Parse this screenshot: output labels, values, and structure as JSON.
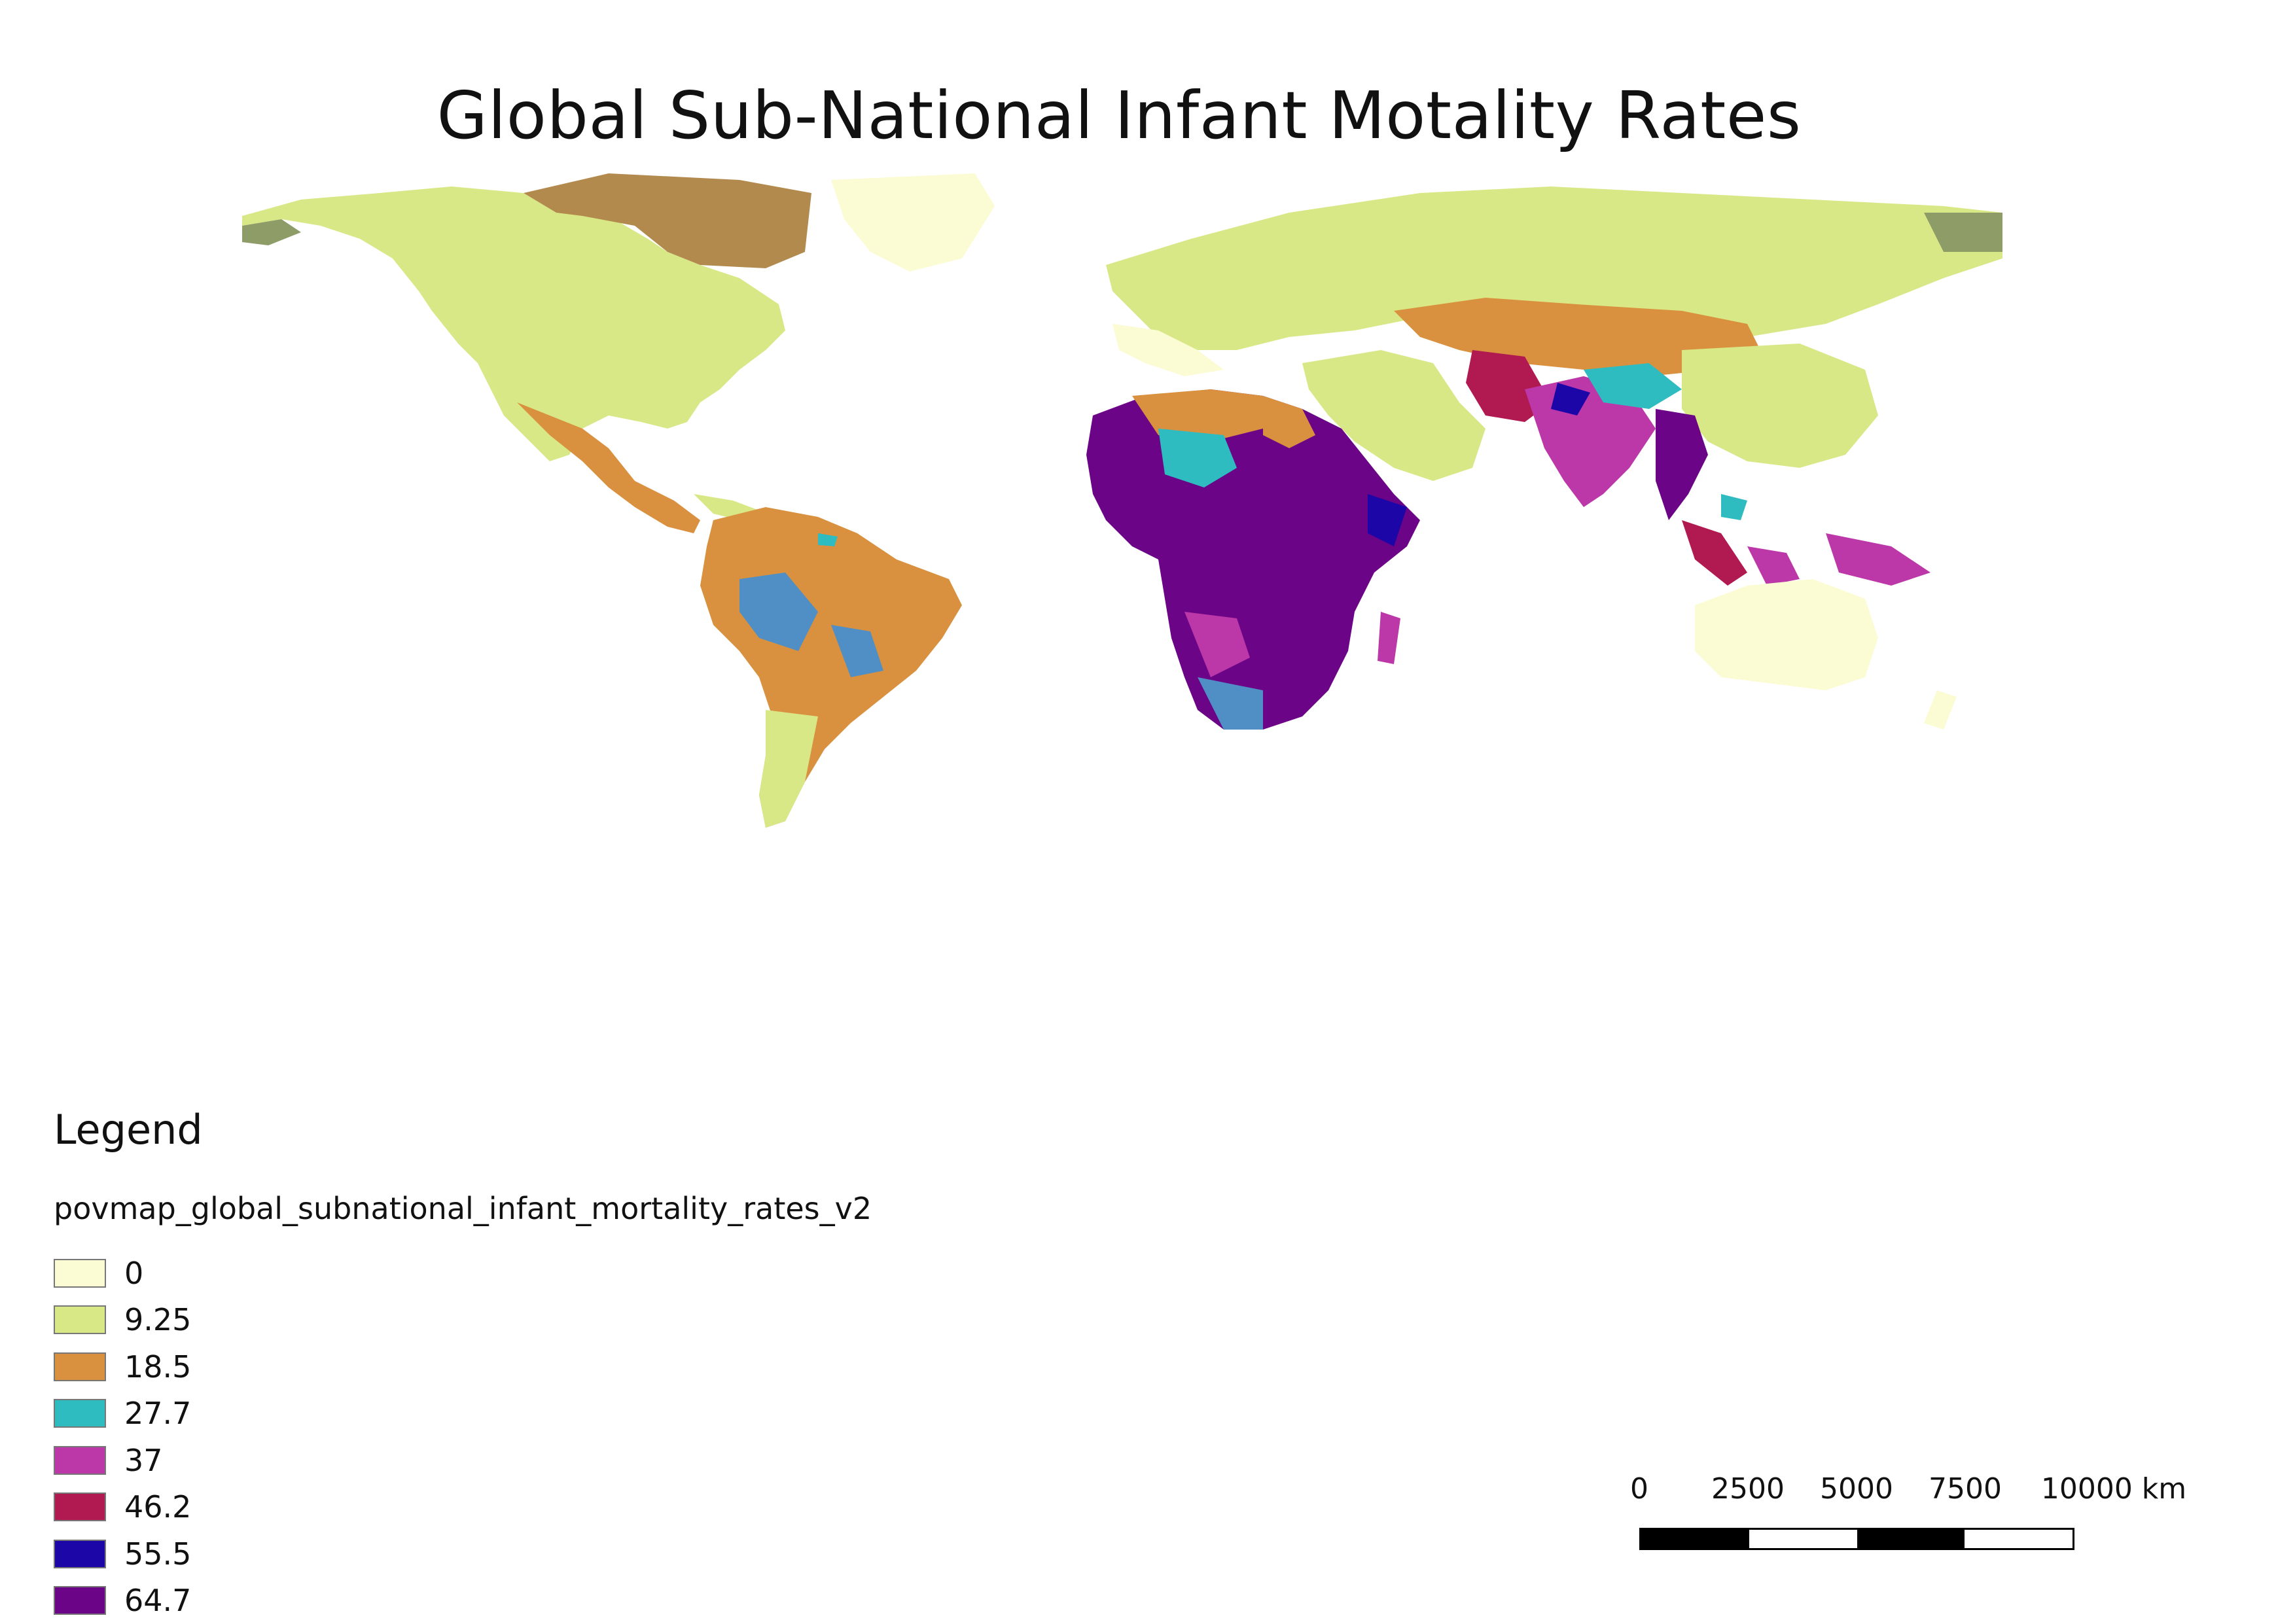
{
  "title": "Global Sub-National Infant Motality Rates",
  "legend": {
    "heading": "Legend",
    "layer_name": "povmap_global_subnational_infant_mortality_rates_v2",
    "items": [
      {
        "label": "0",
        "color": "#fbfcd4"
      },
      {
        "label": "9.25",
        "color": "#d9e886"
      },
      {
        "label": "18.5",
        "color": "#d9913f"
      },
      {
        "label": "27.7",
        "color": "#2fbcc0"
      },
      {
        "label": "37",
        "color": "#bc37a8"
      },
      {
        "label": "46.2",
        "color": "#b01a51"
      },
      {
        "label": "55.5",
        "color": "#1c06a8"
      },
      {
        "label": "64.7",
        "color": "#6b0487"
      }
    ]
  },
  "scalebar": {
    "ticks": [
      "0",
      "2500",
      "5000",
      "7500",
      "10000 km"
    ]
  },
  "colors": {
    "no_data_dark": "#8e9c68",
    "brown_canada": "#b38a4e",
    "steel_blue": "#4f8fc5"
  }
}
